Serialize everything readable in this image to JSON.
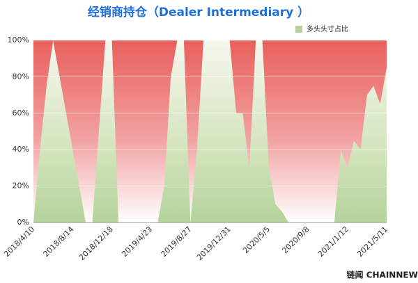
{
  "chart_data": {
    "type": "area",
    "title": "经销商持仓（Dealer Intermediary ）",
    "categories": [
      "2018/4/10",
      null,
      null,
      null,
      null,
      null,
      "2018/8/14",
      null,
      null,
      null,
      null,
      null,
      "2018/12/18",
      null,
      null,
      null,
      null,
      null,
      "2019/4/23",
      null,
      null,
      null,
      null,
      null,
      "2019/8/27",
      null,
      null,
      null,
      null,
      null,
      "2019/12/31",
      null,
      null,
      null,
      null,
      null,
      "2020/5/5",
      null,
      null,
      null,
      null,
      null,
      "2020/9/8",
      null,
      null,
      null,
      null,
      null,
      "2021/1/12",
      null,
      null,
      null,
      null,
      null,
      "2021/5/11"
    ],
    "series": [
      {
        "name": "多头头寸占比",
        "color": "#b5d39b",
        "values": [
          0,
          40,
          75,
          100,
          80,
          60,
          40,
          20,
          0,
          0,
          50,
          100,
          100,
          0,
          0,
          0,
          0,
          0,
          0,
          0,
          20,
          80,
          100,
          100,
          0,
          40,
          100,
          100,
          100,
          100,
          100,
          60,
          60,
          30,
          100,
          100,
          30,
          10,
          6,
          0,
          0,
          0,
          0,
          0,
          0,
          0,
          0,
          40,
          30,
          45,
          40,
          70,
          75,
          65,
          85
        ]
      }
    ],
    "ylim": [
      0,
      100
    ],
    "yticks": [
      {
        "value": 0,
        "label": "0%"
      },
      {
        "value": 20,
        "label": "20%"
      },
      {
        "value": 40,
        "label": "40%"
      },
      {
        "value": 60,
        "label": "60%"
      },
      {
        "value": 80,
        "label": "80%"
      },
      {
        "value": 100,
        "label": "100%"
      }
    ],
    "grid": true,
    "remainder_color": "#e8605c",
    "legend": "top-right",
    "source": "链闻 CHAINNEWS"
  }
}
